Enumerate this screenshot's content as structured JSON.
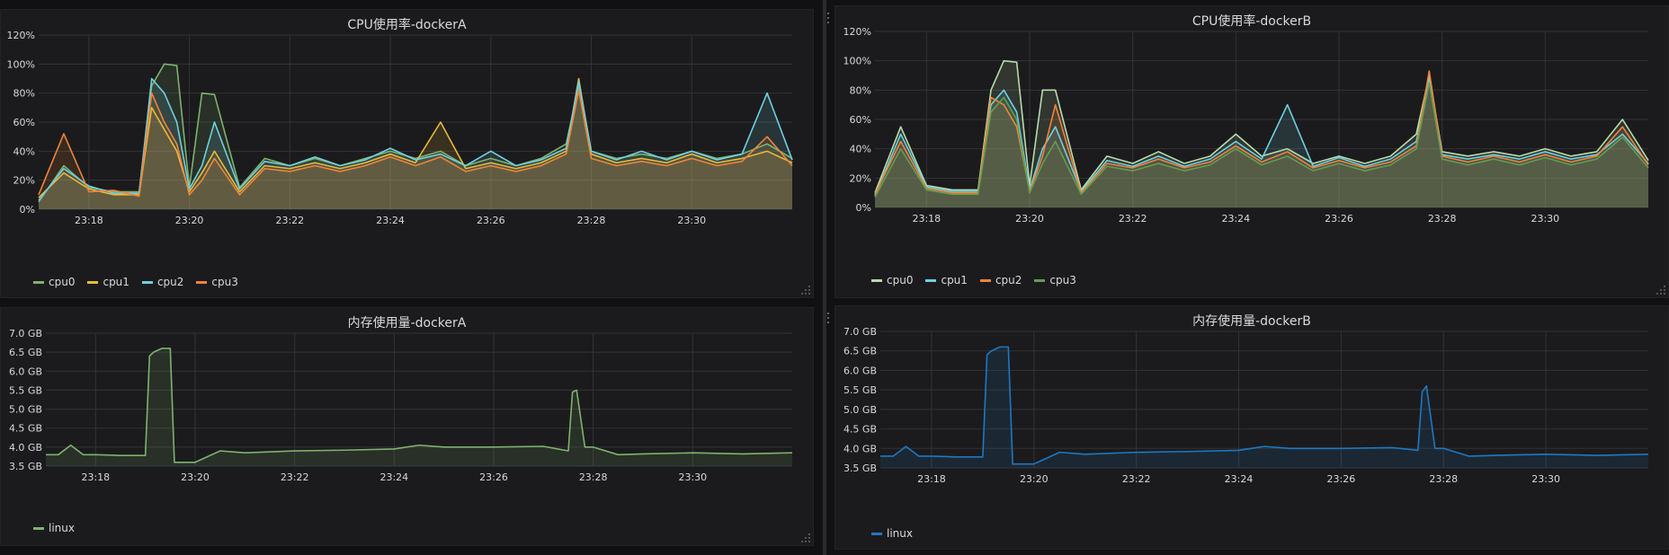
{
  "colors": {
    "cpu0": "#7eb26d",
    "cpu1": "#eab839",
    "cpu2": "#6ed0e0",
    "cpu3": "#ef843c",
    "cpu3b": "#629e51",
    "mem_green": "#7eb26d",
    "mem_blue": "#1f78c1"
  },
  "panels": [
    {
      "id": "cpuA",
      "title": "CPU使用率-dockerA",
      "legend": [
        {
          "name": "cpu0",
          "color": "#7eb26d"
        },
        {
          "name": "cpu1",
          "color": "#eab839"
        },
        {
          "name": "cpu2",
          "color": "#6ed0e0"
        },
        {
          "name": "cpu3",
          "color": "#ef843c"
        }
      ]
    },
    {
      "id": "cpuB",
      "title": "CPU使用率-dockerB",
      "legend": [
        {
          "name": "cpu0",
          "color": "#b7dbab"
        },
        {
          "name": "cpu1",
          "color": "#6ed0e0"
        },
        {
          "name": "cpu2",
          "color": "#ef843c"
        },
        {
          "name": "cpu3",
          "color": "#629e51"
        }
      ]
    },
    {
      "id": "memA",
      "title": "内存使用量-dockerA",
      "legend": [
        {
          "name": "linux",
          "color": "#7eb26d"
        }
      ]
    },
    {
      "id": "memB",
      "title": "内存使用量-dockerB",
      "legend": [
        {
          "name": "linux",
          "color": "#1f78c1"
        }
      ]
    }
  ],
  "chart_data": [
    {
      "type": "line",
      "panel": "cpuA",
      "title": "CPU使用率-dockerA",
      "x_ticks": [
        "23:18",
        "23:20",
        "23:22",
        "23:24",
        "23:26",
        "23:28",
        "23:30"
      ],
      "y_ticks": [
        "0%",
        "20%",
        "40%",
        "60%",
        "80%",
        "100%",
        "120%"
      ],
      "ylim": [
        0,
        120
      ],
      "xlim": [
        "23:17",
        "23:32"
      ],
      "fill": true,
      "series": [
        {
          "name": "cpu0",
          "color": "#7eb26d",
          "x": [
            "23:17",
            "23:17:30",
            "23:18",
            "23:18:30",
            "23:19",
            "23:19:15",
            "23:19:30",
            "23:19:45",
            "23:20",
            "23:20:15",
            "23:20:30",
            "23:21",
            "23:21:30",
            "23:22",
            "23:22:30",
            "23:23",
            "23:23:30",
            "23:24",
            "23:24:30",
            "23:25",
            "23:25:30",
            "23:26",
            "23:26:30",
            "23:27",
            "23:27:30",
            "23:27:45",
            "23:28",
            "23:28:30",
            "23:29",
            "23:29:30",
            "23:30",
            "23:30:30",
            "23:31",
            "23:31:30",
            "23:32"
          ],
          "values": [
            5,
            30,
            15,
            12,
            12,
            85,
            100,
            99,
            15,
            80,
            79,
            15,
            35,
            30,
            35,
            30,
            35,
            40,
            35,
            40,
            30,
            35,
            30,
            35,
            45,
            85,
            40,
            35,
            38,
            35,
            40,
            35,
            38,
            45,
            35
          ]
        },
        {
          "name": "cpu1",
          "color": "#eab839",
          "x": [
            "23:17",
            "23:17:30",
            "23:18",
            "23:18:30",
            "23:19",
            "23:19:15",
            "23:19:30",
            "23:19:45",
            "23:20",
            "23:20:15",
            "23:20:30",
            "23:21",
            "23:21:30",
            "23:22",
            "23:22:30",
            "23:23",
            "23:23:30",
            "23:24",
            "23:24:30",
            "23:25",
            "23:25:30",
            "23:26",
            "23:26:30",
            "23:27",
            "23:27:30",
            "23:27:45",
            "23:28",
            "23:28:30",
            "23:29",
            "23:29:30",
            "23:30",
            "23:30:30",
            "23:31",
            "23:31:30",
            "23:32"
          ],
          "values": [
            8,
            25,
            14,
            10,
            10,
            70,
            55,
            40,
            12,
            25,
            40,
            12,
            30,
            28,
            32,
            28,
            32,
            38,
            32,
            60,
            28,
            32,
            28,
            32,
            40,
            90,
            38,
            32,
            35,
            32,
            38,
            32,
            35,
            40,
            32
          ]
        },
        {
          "name": "cpu2",
          "color": "#6ed0e0",
          "x": [
            "23:17",
            "23:17:30",
            "23:18",
            "23:18:30",
            "23:19",
            "23:19:15",
            "23:19:30",
            "23:19:45",
            "23:20",
            "23:20:15",
            "23:20:30",
            "23:21",
            "23:21:30",
            "23:22",
            "23:22:30",
            "23:23",
            "23:23:30",
            "23:24",
            "23:24:30",
            "23:25",
            "23:25:30",
            "23:26",
            "23:26:30",
            "23:27",
            "23:27:30",
            "23:27:45",
            "23:28",
            "23:28:30",
            "23:29",
            "23:29:30",
            "23:30",
            "23:30:30",
            "23:31",
            "23:31:30",
            "23:32"
          ],
          "values": [
            6,
            28,
            16,
            11,
            11,
            90,
            80,
            60,
            14,
            30,
            60,
            14,
            33,
            30,
            36,
            30,
            34,
            42,
            34,
            38,
            30,
            40,
            30,
            34,
            42,
            88,
            40,
            34,
            40,
            34,
            40,
            34,
            38,
            80,
            34
          ]
        },
        {
          "name": "cpu3",
          "color": "#ef843c",
          "x": [
            "23:17",
            "23:17:30",
            "23:18",
            "23:18:30",
            "23:19",
            "23:19:15",
            "23:19:30",
            "23:19:45",
            "23:20",
            "23:20:15",
            "23:20:30",
            "23:21",
            "23:21:30",
            "23:22",
            "23:22:30",
            "23:23",
            "23:23:30",
            "23:24",
            "23:24:30",
            "23:25",
            "23:25:30",
            "23:26",
            "23:26:30",
            "23:27",
            "23:27:30",
            "23:27:45",
            "23:28",
            "23:28:30",
            "23:29",
            "23:29:30",
            "23:30",
            "23:30:30",
            "23:31",
            "23:31:30",
            "23:32"
          ],
          "values": [
            10,
            52,
            12,
            13,
            9,
            80,
            60,
            45,
            10,
            20,
            35,
            10,
            28,
            26,
            30,
            26,
            30,
            36,
            30,
            36,
            26,
            30,
            26,
            30,
            38,
            82,
            35,
            30,
            33,
            30,
            35,
            30,
            33,
            50,
            30
          ]
        }
      ]
    },
    {
      "type": "line",
      "panel": "cpuB",
      "title": "CPU使用率-dockerB",
      "x_ticks": [
        "23:18",
        "23:20",
        "23:22",
        "23:24",
        "23:26",
        "23:28",
        "23:30"
      ],
      "y_ticks": [
        "0%",
        "20%",
        "40%",
        "60%",
        "80%",
        "100%",
        "120%"
      ],
      "ylim": [
        0,
        120
      ],
      "xlim": [
        "23:17",
        "23:32"
      ],
      "fill": true,
      "series": [
        {
          "name": "cpu0",
          "color": "#b7dbab",
          "x": [
            "23:17",
            "23:17:30",
            "23:18",
            "23:18:30",
            "23:19",
            "23:19:15",
            "23:19:30",
            "23:19:45",
            "23:20",
            "23:20:15",
            "23:20:30",
            "23:21",
            "23:21:30",
            "23:22",
            "23:22:30",
            "23:23",
            "23:23:30",
            "23:24",
            "23:24:30",
            "23:25",
            "23:25:30",
            "23:26",
            "23:26:30",
            "23:27",
            "23:27:30",
            "23:27:45",
            "23:28",
            "23:28:30",
            "23:29",
            "23:29:30",
            "23:30",
            "23:30:30",
            "23:31",
            "23:31:30",
            "23:32"
          ],
          "values": [
            10,
            55,
            15,
            12,
            12,
            80,
            100,
            99,
            15,
            80,
            80,
            12,
            35,
            30,
            38,
            30,
            35,
            50,
            35,
            40,
            30,
            35,
            30,
            35,
            50,
            90,
            38,
            35,
            38,
            35,
            40,
            35,
            38,
            60,
            32
          ]
        },
        {
          "name": "cpu1",
          "color": "#6ed0e0",
          "x": [
            "23:17",
            "23:17:30",
            "23:18",
            "23:18:30",
            "23:19",
            "23:19:15",
            "23:19:30",
            "23:19:45",
            "23:20",
            "23:20:15",
            "23:20:30",
            "23:21",
            "23:21:30",
            "23:22",
            "23:22:30",
            "23:23",
            "23:23:30",
            "23:24",
            "23:24:30",
            "23:25",
            "23:25:30",
            "23:26",
            "23:26:30",
            "23:27",
            "23:27:30",
            "23:27:45",
            "23:28",
            "23:28:30",
            "23:29",
            "23:29:30",
            "23:30",
            "23:30:30",
            "23:31",
            "23:31:30",
            "23:32"
          ],
          "values": [
            8,
            50,
            14,
            11,
            11,
            70,
            80,
            65,
            12,
            40,
            55,
            11,
            32,
            28,
            35,
            28,
            33,
            45,
            33,
            70,
            28,
            34,
            28,
            33,
            45,
            88,
            36,
            33,
            36,
            33,
            38,
            33,
            36,
            50,
            30
          ]
        },
        {
          "name": "cpu2",
          "color": "#ef843c",
          "x": [
            "23:17",
            "23:17:30",
            "23:18",
            "23:18:30",
            "23:19",
            "23:19:15",
            "23:19:30",
            "23:19:45",
            "23:20",
            "23:20:15",
            "23:20:30",
            "23:21",
            "23:21:30",
            "23:22",
            "23:22:30",
            "23:23",
            "23:23:30",
            "23:24",
            "23:24:30",
            "23:25",
            "23:25:30",
            "23:26",
            "23:26:30",
            "23:27",
            "23:27:30",
            "23:27:45",
            "23:28",
            "23:28:30",
            "23:29",
            "23:29:30",
            "23:30",
            "23:30:30",
            "23:31",
            "23:31:30",
            "23:32"
          ],
          "values": [
            9,
            45,
            13,
            10,
            10,
            75,
            70,
            55,
            11,
            35,
            70,
            10,
            30,
            27,
            33,
            27,
            31,
            42,
            31,
            38,
            27,
            32,
            27,
            31,
            42,
            93,
            35,
            31,
            35,
            31,
            36,
            31,
            35,
            55,
            29
          ]
        },
        {
          "name": "cpu3",
          "color": "#629e51",
          "x": [
            "23:17",
            "23:17:30",
            "23:18",
            "23:18:30",
            "23:19",
            "23:19:15",
            "23:19:30",
            "23:19:45",
            "23:20",
            "23:20:15",
            "23:20:30",
            "23:21",
            "23:21:30",
            "23:22",
            "23:22:30",
            "23:23",
            "23:23:30",
            "23:24",
            "23:24:30",
            "23:25",
            "23:25:30",
            "23:26",
            "23:26:30",
            "23:27",
            "23:27:30",
            "23:27:45",
            "23:28",
            "23:28:30",
            "23:29",
            "23:29:30",
            "23:30",
            "23:30:30",
            "23:31",
            "23:31:30",
            "23:32"
          ],
          "values": [
            7,
            40,
            12,
            9,
            9,
            65,
            75,
            60,
            10,
            30,
            45,
            9,
            28,
            25,
            30,
            25,
            29,
            40,
            29,
            35,
            25,
            30,
            25,
            29,
            40,
            85,
            33,
            29,
            33,
            29,
            34,
            29,
            33,
            48,
            27
          ]
        }
      ]
    },
    {
      "type": "line",
      "panel": "memA",
      "title": "内存使用量-dockerA",
      "x_ticks": [
        "23:18",
        "23:20",
        "23:22",
        "23:24",
        "23:26",
        "23:28",
        "23:30"
      ],
      "y_ticks": [
        "3.5 GB",
        "4.0 GB",
        "4.5 GB",
        "5.0 GB",
        "5.5 GB",
        "6.0 GB",
        "6.5 GB",
        "7.0 GB"
      ],
      "ylim": [
        3.5,
        7.0
      ],
      "xlim": [
        "23:17",
        "23:32"
      ],
      "fill": true,
      "series": [
        {
          "name": "linux",
          "color": "#7eb26d",
          "x": [
            "23:17",
            "23:17:15",
            "23:17:30",
            "23:17:45",
            "23:18",
            "23:18:30",
            "23:19",
            "23:19:05",
            "23:19:10",
            "23:19:20",
            "23:19:30",
            "23:19:35",
            "23:19:40",
            "23:20",
            "23:20:30",
            "23:21",
            "23:22",
            "23:23",
            "23:24",
            "23:24:30",
            "23:25",
            "23:26",
            "23:27",
            "23:27:30",
            "23:27:35",
            "23:27:40",
            "23:27:50",
            "23:28",
            "23:28:30",
            "23:29",
            "23:30",
            "23:31",
            "23:32"
          ],
          "values": [
            3.8,
            3.8,
            4.05,
            3.8,
            3.8,
            3.78,
            3.78,
            6.4,
            6.5,
            6.6,
            6.6,
            3.6,
            3.6,
            3.6,
            3.9,
            3.85,
            3.9,
            3.92,
            3.95,
            4.05,
            4.0,
            4.0,
            4.02,
            3.9,
            5.45,
            5.5,
            4.0,
            4.0,
            3.8,
            3.82,
            3.85,
            3.82,
            3.85
          ]
        }
      ]
    },
    {
      "type": "line",
      "panel": "memB",
      "title": "内存使用量-dockerB",
      "x_ticks": [
        "23:18",
        "23:20",
        "23:22",
        "23:24",
        "23:26",
        "23:28",
        "23:30"
      ],
      "y_ticks": [
        "3.5 GB",
        "4.0 GB",
        "4.5 GB",
        "5.0 GB",
        "5.5 GB",
        "6.0 GB",
        "6.5 GB",
        "7.0 GB"
      ],
      "ylim": [
        3.5,
        7.0
      ],
      "xlim": [
        "23:17",
        "23:32"
      ],
      "fill": true,
      "series": [
        {
          "name": "linux",
          "color": "#1f78c1",
          "x": [
            "23:17",
            "23:17:15",
            "23:17:30",
            "23:17:45",
            "23:18",
            "23:18:30",
            "23:19",
            "23:19:05",
            "23:19:10",
            "23:19:20",
            "23:19:30",
            "23:19:35",
            "23:19:40",
            "23:20",
            "23:20:30",
            "23:21",
            "23:22",
            "23:23",
            "23:24",
            "23:24:30",
            "23:25",
            "23:26",
            "23:27",
            "23:27:30",
            "23:27:35",
            "23:27:40",
            "23:27:50",
            "23:28",
            "23:28:30",
            "23:29",
            "23:30",
            "23:31",
            "23:32"
          ],
          "values": [
            3.8,
            3.8,
            4.05,
            3.8,
            3.8,
            3.78,
            3.78,
            6.4,
            6.5,
            6.6,
            6.6,
            3.6,
            3.6,
            3.6,
            3.9,
            3.85,
            3.9,
            3.92,
            3.95,
            4.05,
            4.0,
            4.0,
            4.02,
            3.95,
            5.45,
            5.6,
            4.0,
            4.0,
            3.8,
            3.82,
            3.85,
            3.82,
            3.85
          ]
        }
      ]
    }
  ]
}
